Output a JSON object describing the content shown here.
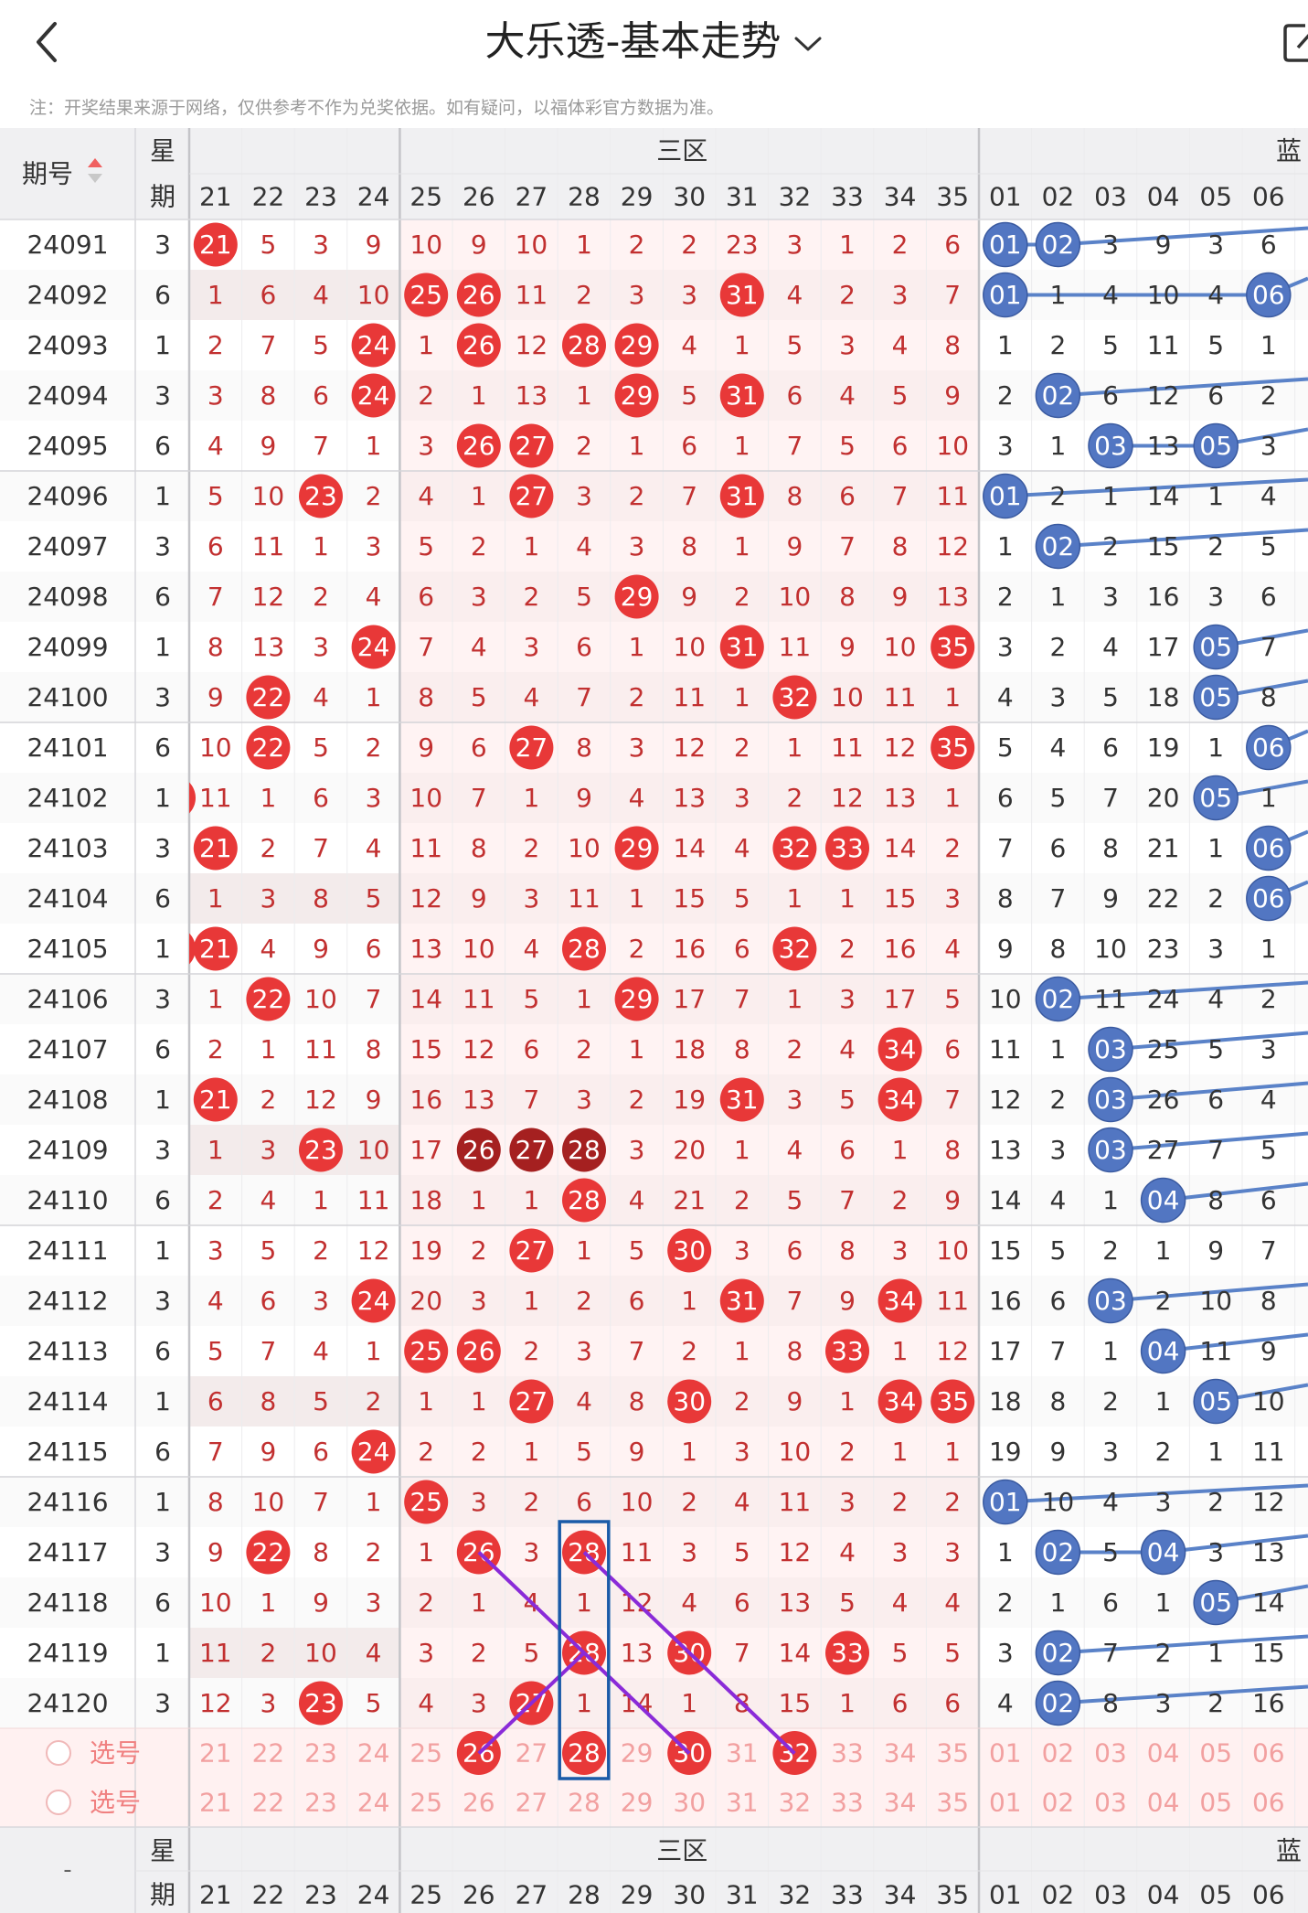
{
  "header": {
    "title": "大乐透-基本走势"
  },
  "notice": "注：开奖结果来源于网络，仅供参考不作为兑奖依据。如有疑问，以福体彩官方数据为准。",
  "table": {
    "period_label": "期号",
    "week_label_1": "星",
    "week_label_2": "期",
    "zone3_label": "三区",
    "blue_label": "蓝",
    "select_label": "选号",
    "footer_dash": "-",
    "front_cols": [
      "21",
      "22",
      "23",
      "24",
      "25",
      "26",
      "27",
      "28",
      "29",
      "30",
      "31",
      "32",
      "33",
      "34",
      "35"
    ],
    "blue_cols": [
      "01",
      "02",
      "03",
      "04",
      "05",
      "06"
    ],
    "rows": [
      {
        "p": "24091",
        "w": "3",
        "f": [
          "21",
          "5",
          "3",
          "9",
          "10",
          "9",
          "10",
          "1",
          "2",
          "2",
          "23",
          "3",
          "1",
          "2",
          "6"
        ],
        "b": [
          "01",
          "02",
          "3",
          "9",
          "3",
          "6"
        ]
      },
      {
        "p": "24092",
        "w": "6",
        "f": [
          "1",
          "6",
          "4",
          "10",
          "25",
          "26",
          "11",
          "2",
          "3",
          "3",
          "31",
          "4",
          "2",
          "3",
          "7"
        ],
        "b": [
          "01",
          "1",
          "4",
          "10",
          "4",
          "06"
        ]
      },
      {
        "p": "24093",
        "w": "1",
        "f": [
          "2",
          "7",
          "5",
          "24",
          "1",
          "26",
          "12",
          "28",
          "29",
          "4",
          "1",
          "5",
          "3",
          "4",
          "8"
        ],
        "b": [
          "1",
          "2",
          "5",
          "11",
          "5",
          "1"
        ]
      },
      {
        "p": "24094",
        "w": "3",
        "f": [
          "3",
          "8",
          "6",
          "24",
          "2",
          "1",
          "13",
          "1",
          "29",
          "5",
          "31",
          "6",
          "4",
          "5",
          "9"
        ],
        "b": [
          "2",
          "02",
          "6",
          "12",
          "6",
          "2"
        ]
      },
      {
        "p": "24095",
        "w": "6",
        "f": [
          "4",
          "9",
          "7",
          "1",
          "3",
          "26",
          "27",
          "2",
          "1",
          "6",
          "1",
          "7",
          "5",
          "6",
          "10"
        ],
        "b": [
          "3",
          "1",
          "03",
          "13",
          "05",
          "3"
        ]
      },
      {
        "p": "24096",
        "w": "1",
        "f": [
          "5",
          "10",
          "23",
          "2",
          "4",
          "1",
          "27",
          "3",
          "2",
          "7",
          "31",
          "8",
          "6",
          "7",
          "11"
        ],
        "b": [
          "01",
          "2",
          "1",
          "14",
          "1",
          "4"
        ]
      },
      {
        "p": "24097",
        "w": "3",
        "f": [
          "6",
          "11",
          "1",
          "3",
          "5",
          "2",
          "1",
          "4",
          "3",
          "8",
          "1",
          "9",
          "7",
          "8",
          "12"
        ],
        "b": [
          "1",
          "02",
          "2",
          "15",
          "2",
          "5"
        ]
      },
      {
        "p": "24098",
        "w": "6",
        "f": [
          "7",
          "12",
          "2",
          "4",
          "6",
          "3",
          "2",
          "5",
          "29",
          "9",
          "2",
          "10",
          "8",
          "9",
          "13"
        ],
        "b": [
          "2",
          "1",
          "3",
          "16",
          "3",
          "6"
        ]
      },
      {
        "p": "24099",
        "w": "1",
        "f": [
          "8",
          "13",
          "3",
          "24",
          "7",
          "4",
          "3",
          "6",
          "1",
          "10",
          "31",
          "11",
          "9",
          "10",
          "35"
        ],
        "b": [
          "3",
          "2",
          "4",
          "17",
          "05",
          "7"
        ]
      },
      {
        "p": "24100",
        "w": "3",
        "f": [
          "9",
          "22",
          "4",
          "1",
          "8",
          "5",
          "4",
          "7",
          "2",
          "11",
          "1",
          "32",
          "10",
          "11",
          "1"
        ],
        "b": [
          "4",
          "3",
          "5",
          "18",
          "05",
          "8"
        ]
      },
      {
        "p": "24101",
        "w": "6",
        "f": [
          "10",
          "22",
          "5",
          "2",
          "9",
          "6",
          "27",
          "8",
          "3",
          "12",
          "2",
          "1",
          "11",
          "12",
          "35"
        ],
        "b": [
          "5",
          "4",
          "6",
          "19",
          "1",
          "06"
        ]
      },
      {
        "p": "24102",
        "w": "1",
        "f": [
          "11",
          "1",
          "6",
          "3",
          "10",
          "7",
          "1",
          "9",
          "4",
          "13",
          "3",
          "2",
          "12",
          "13",
          "1"
        ],
        "b": [
          "6",
          "5",
          "7",
          "20",
          "05",
          "1"
        ]
      },
      {
        "p": "24103",
        "w": "3",
        "f": [
          "21",
          "2",
          "7",
          "4",
          "11",
          "8",
          "2",
          "10",
          "29",
          "14",
          "4",
          "32",
          "33",
          "14",
          "2"
        ],
        "b": [
          "7",
          "6",
          "8",
          "21",
          "1",
          "06"
        ]
      },
      {
        "p": "24104",
        "w": "6",
        "f": [
          "1",
          "3",
          "8",
          "5",
          "12",
          "9",
          "3",
          "11",
          "1",
          "15",
          "5",
          "1",
          "1",
          "15",
          "3"
        ],
        "b": [
          "8",
          "7",
          "9",
          "22",
          "2",
          "06"
        ]
      },
      {
        "p": "24105",
        "w": "1",
        "f": [
          "21",
          "4",
          "9",
          "6",
          "13",
          "10",
          "4",
          "28",
          "2",
          "16",
          "6",
          "32",
          "2",
          "16",
          "4"
        ],
        "b": [
          "9",
          "8",
          "10",
          "23",
          "3",
          "1"
        ]
      },
      {
        "p": "24106",
        "w": "3",
        "f": [
          "1",
          "22",
          "10",
          "7",
          "14",
          "11",
          "5",
          "1",
          "29",
          "17",
          "7",
          "1",
          "3",
          "17",
          "5"
        ],
        "b": [
          "10",
          "02",
          "11",
          "24",
          "4",
          "2"
        ]
      },
      {
        "p": "24107",
        "w": "6",
        "f": [
          "2",
          "1",
          "11",
          "8",
          "15",
          "12",
          "6",
          "2",
          "1",
          "18",
          "8",
          "2",
          "4",
          "34",
          "6"
        ],
        "b": [
          "11",
          "1",
          "03",
          "25",
          "5",
          "3"
        ]
      },
      {
        "p": "24108",
        "w": "1",
        "f": [
          "21",
          "2",
          "12",
          "9",
          "16",
          "13",
          "7",
          "3",
          "2",
          "19",
          "31",
          "3",
          "5",
          "34",
          "7"
        ],
        "b": [
          "12",
          "2",
          "03",
          "26",
          "6",
          "4"
        ]
      },
      {
        "p": "24109",
        "w": "3",
        "f": [
          "1",
          "3",
          "23",
          "10",
          "17",
          "26",
          "27",
          "28",
          "3",
          "20",
          "1",
          "4",
          "6",
          "1",
          "8"
        ],
        "b": [
          "13",
          "3",
          "03",
          "27",
          "7",
          "5"
        ]
      },
      {
        "p": "24110",
        "w": "6",
        "f": [
          "2",
          "4",
          "1",
          "11",
          "18",
          "1",
          "1",
          "28",
          "4",
          "21",
          "2",
          "5",
          "7",
          "2",
          "9"
        ],
        "b": [
          "14",
          "4",
          "1",
          "04",
          "8",
          "6"
        ]
      },
      {
        "p": "24111",
        "w": "1",
        "f": [
          "3",
          "5",
          "2",
          "12",
          "19",
          "2",
          "27",
          "1",
          "5",
          "30",
          "3",
          "6",
          "8",
          "3",
          "10"
        ],
        "b": [
          "15",
          "5",
          "2",
          "1",
          "9",
          "7"
        ]
      },
      {
        "p": "24112",
        "w": "3",
        "f": [
          "4",
          "6",
          "3",
          "24",
          "20",
          "3",
          "1",
          "2",
          "6",
          "1",
          "31",
          "7",
          "9",
          "34",
          "11"
        ],
        "b": [
          "16",
          "6",
          "03",
          "2",
          "10",
          "8"
        ]
      },
      {
        "p": "24113",
        "w": "6",
        "f": [
          "5",
          "7",
          "4",
          "1",
          "25",
          "26",
          "2",
          "3",
          "7",
          "2",
          "1",
          "8",
          "33",
          "1",
          "12"
        ],
        "b": [
          "17",
          "7",
          "1",
          "04",
          "11",
          "9"
        ]
      },
      {
        "p": "24114",
        "w": "1",
        "f": [
          "6",
          "8",
          "5",
          "2",
          "1",
          "1",
          "27",
          "4",
          "8",
          "30",
          "2",
          "9",
          "1",
          "34",
          "35"
        ],
        "b": [
          "18",
          "8",
          "2",
          "1",
          "05",
          "10"
        ]
      },
      {
        "p": "24115",
        "w": "6",
        "f": [
          "7",
          "9",
          "6",
          "24",
          "2",
          "2",
          "1",
          "5",
          "9",
          "1",
          "3",
          "10",
          "2",
          "1",
          "1"
        ],
        "b": [
          "19",
          "9",
          "3",
          "2",
          "1",
          "11"
        ]
      },
      {
        "p": "24116",
        "w": "1",
        "f": [
          "8",
          "10",
          "7",
          "1",
          "25",
          "3",
          "2",
          "6",
          "10",
          "2",
          "4",
          "11",
          "3",
          "2",
          "2"
        ],
        "b": [
          "01",
          "10",
          "4",
          "3",
          "2",
          "12"
        ]
      },
      {
        "p": "24117",
        "w": "3",
        "f": [
          "9",
          "22",
          "8",
          "2",
          "1",
          "26",
          "3",
          "28",
          "11",
          "3",
          "5",
          "12",
          "4",
          "3",
          "3"
        ],
        "b": [
          "1",
          "02",
          "5",
          "04",
          "3",
          "13"
        ]
      },
      {
        "p": "24118",
        "w": "6",
        "f": [
          "10",
          "1",
          "9",
          "3",
          "2",
          "1",
          "4",
          "1",
          "12",
          "4",
          "6",
          "13",
          "5",
          "4",
          "4"
        ],
        "b": [
          "2",
          "1",
          "6",
          "1",
          "05",
          "14"
        ]
      },
      {
        "p": "24119",
        "w": "1",
        "f": [
          "11",
          "2",
          "10",
          "4",
          "3",
          "2",
          "5",
          "28",
          "13",
          "30",
          "7",
          "14",
          "33",
          "5",
          "5"
        ],
        "b": [
          "3",
          "02",
          "7",
          "2",
          "1",
          "15"
        ]
      },
      {
        "p": "24120",
        "w": "3",
        "f": [
          "12",
          "3",
          "23",
          "5",
          "4",
          "3",
          "27",
          "1",
          "14",
          "1",
          "8",
          "15",
          "1",
          "6",
          "6"
        ],
        "b": [
          "4",
          "02",
          "8",
          "3",
          "2",
          "16"
        ]
      }
    ]
  }
}
